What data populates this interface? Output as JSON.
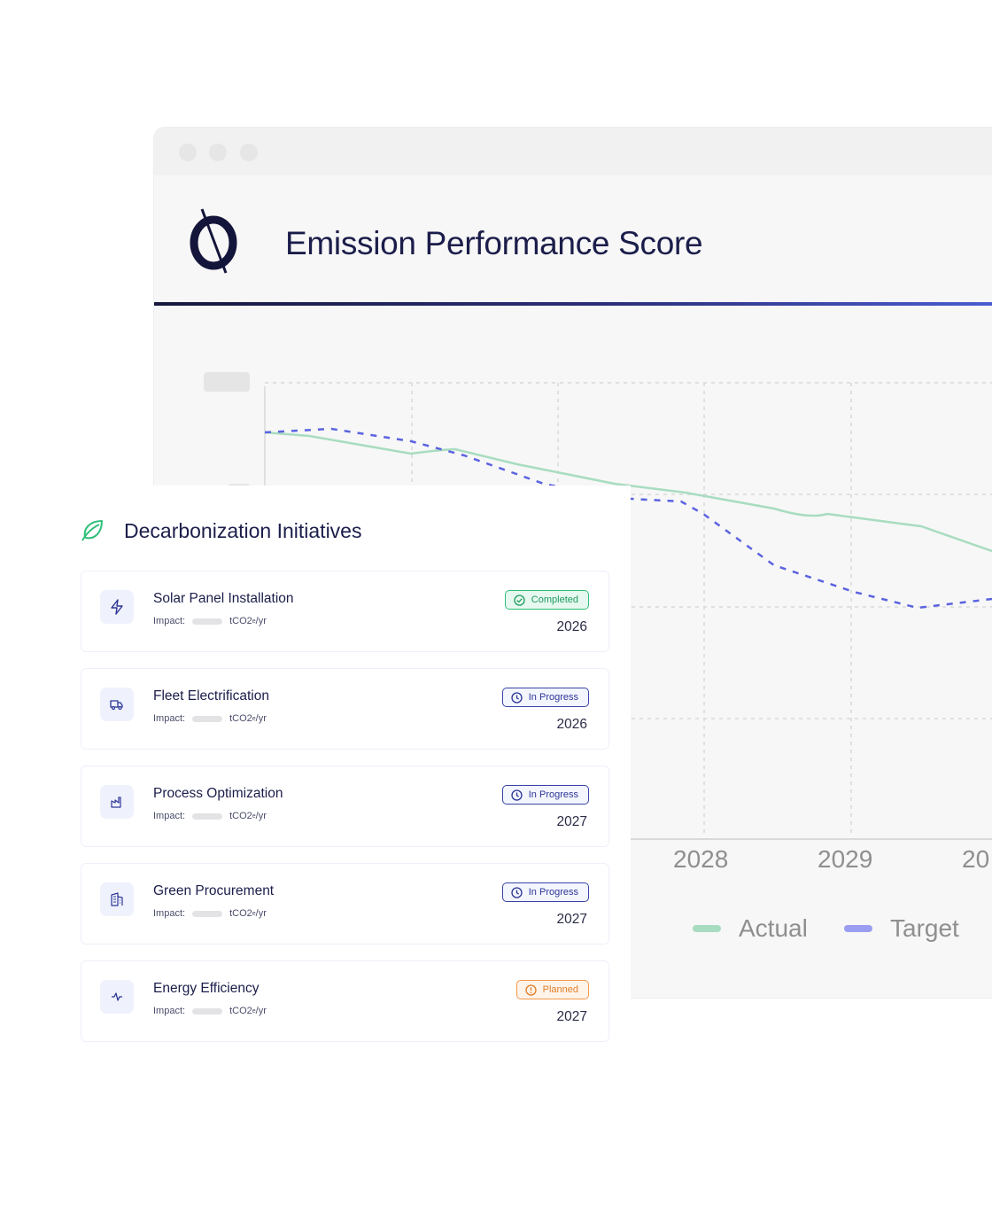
{
  "window": {
    "title": "Emission Performance Score",
    "accent_gradient": [
      "#17183d",
      "#4b5bd0"
    ]
  },
  "chart_data": {
    "type": "line",
    "x_visible": [
      "2028",
      "2029",
      "20"
    ],
    "series": [
      {
        "name": "Actual",
        "color": "#a8dcc0",
        "style": "solid"
      },
      {
        "name": "Target",
        "color": "#5b63e0",
        "style": "dashed"
      }
    ],
    "legend": [
      "Actual",
      "Target"
    ]
  },
  "panel": {
    "title": "Decarbonization Initiatives",
    "impact_label": "Impact:",
    "impact_unit": "tCO2",
    "impact_sub": "e",
    "impact_suffix": "/yr",
    "items": [
      {
        "name": "Solar Panel Installation",
        "status": "Completed",
        "year": "2026",
        "icon": "bolt-icon"
      },
      {
        "name": "Fleet Electrification",
        "status": "In Progress",
        "year": "2026",
        "icon": "truck-icon"
      },
      {
        "name": "Process Optimization",
        "status": "In Progress",
        "year": "2027",
        "icon": "factory-icon"
      },
      {
        "name": "Green Procurement",
        "status": "In Progress",
        "year": "2027",
        "icon": "building-icon"
      },
      {
        "name": "Energy Efficiency",
        "status": "Planned",
        "year": "2027",
        "icon": "activity-icon"
      }
    ]
  }
}
